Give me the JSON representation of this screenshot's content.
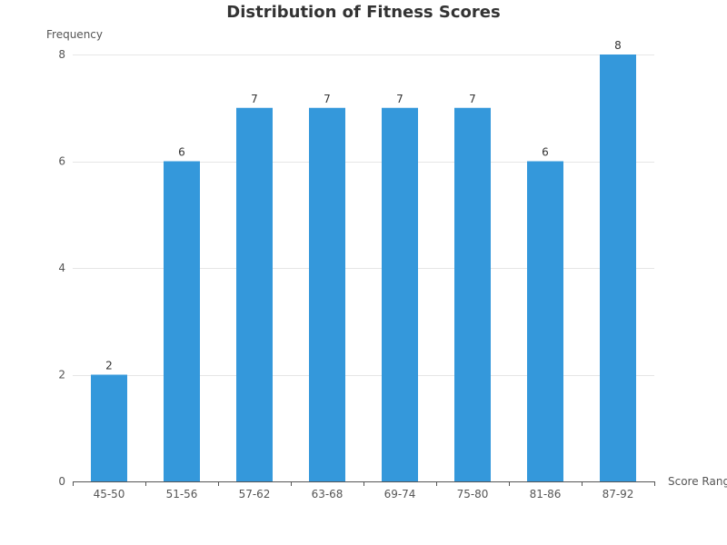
{
  "chart_data": {
    "type": "bar",
    "title": "Distribution of Fitness Scores",
    "xlabel": "Score Rang",
    "ylabel": "Frequency",
    "categories": [
      "45-50",
      "51-56",
      "57-62",
      "63-68",
      "69-74",
      "75-80",
      "81-86",
      "87-92"
    ],
    "values": [
      2,
      6,
      7,
      7,
      7,
      7,
      6,
      8
    ],
    "ylim": [
      0,
      8
    ],
    "yticks": [
      0,
      2,
      4,
      6,
      8
    ],
    "grid": true,
    "data_labels": true,
    "bar_color": "#3498db"
  }
}
